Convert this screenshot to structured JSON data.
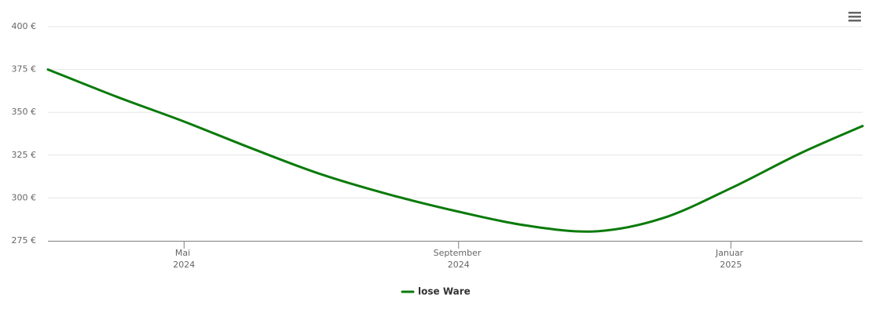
{
  "chart_data": {
    "type": "line",
    "x": [
      "2024-03",
      "2024-04",
      "2024-05",
      "2024-06",
      "2024-07",
      "2024-08",
      "2024-09",
      "2024-10",
      "2024-11",
      "2024-12",
      "2025-01",
      "2025-02",
      "2025-03"
    ],
    "series": [
      {
        "name": "lose Ware",
        "color": "#0a7a0a",
        "values": [
          375,
          359,
          344.6,
          328.6,
          314,
          302,
          292,
          284,
          280.5,
          288,
          305.7,
          326,
          342
        ]
      }
    ],
    "xlim": [
      "2024-03",
      "2025-03"
    ],
    "xticks": [
      {
        "value": "2024-05",
        "label": "Mai 2024"
      },
      {
        "value": "2024-09",
        "label": "September 2024"
      },
      {
        "value": "2025-01",
        "label": "Januar 2025"
      }
    ],
    "ylim": [
      275,
      400
    ],
    "yticks": [
      {
        "value": 275,
        "label": "275 €"
      },
      {
        "value": 300,
        "label": "300 €"
      },
      {
        "value": 325,
        "label": "325 €"
      },
      {
        "value": 350,
        "label": "350 €"
      },
      {
        "value": 375,
        "label": "375 €"
      },
      {
        "value": 400,
        "label": "400 €"
      }
    ],
    "grid": true,
    "legend": "bottom"
  }
}
